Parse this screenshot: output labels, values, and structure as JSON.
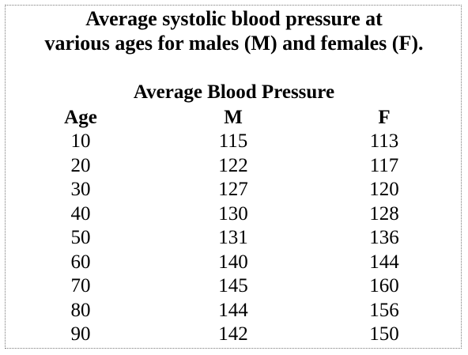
{
  "title_line1": "Average systolic blood pressure at",
  "title_line2": "various ages for males (M) and females (F).",
  "table_title": "Average Blood Pressure",
  "columns": [
    "Age",
    "M",
    "F"
  ],
  "rows": [
    [
      "10",
      "115",
      "113"
    ],
    [
      "20",
      "122",
      "117"
    ],
    [
      "30",
      "127",
      "120"
    ],
    [
      "40",
      "130",
      "128"
    ],
    [
      "50",
      "131",
      "136"
    ],
    [
      "60",
      "140",
      "144"
    ],
    [
      "70",
      "145",
      "160"
    ],
    [
      "80",
      "144",
      "156"
    ],
    [
      "90",
      "142",
      "150"
    ]
  ]
}
